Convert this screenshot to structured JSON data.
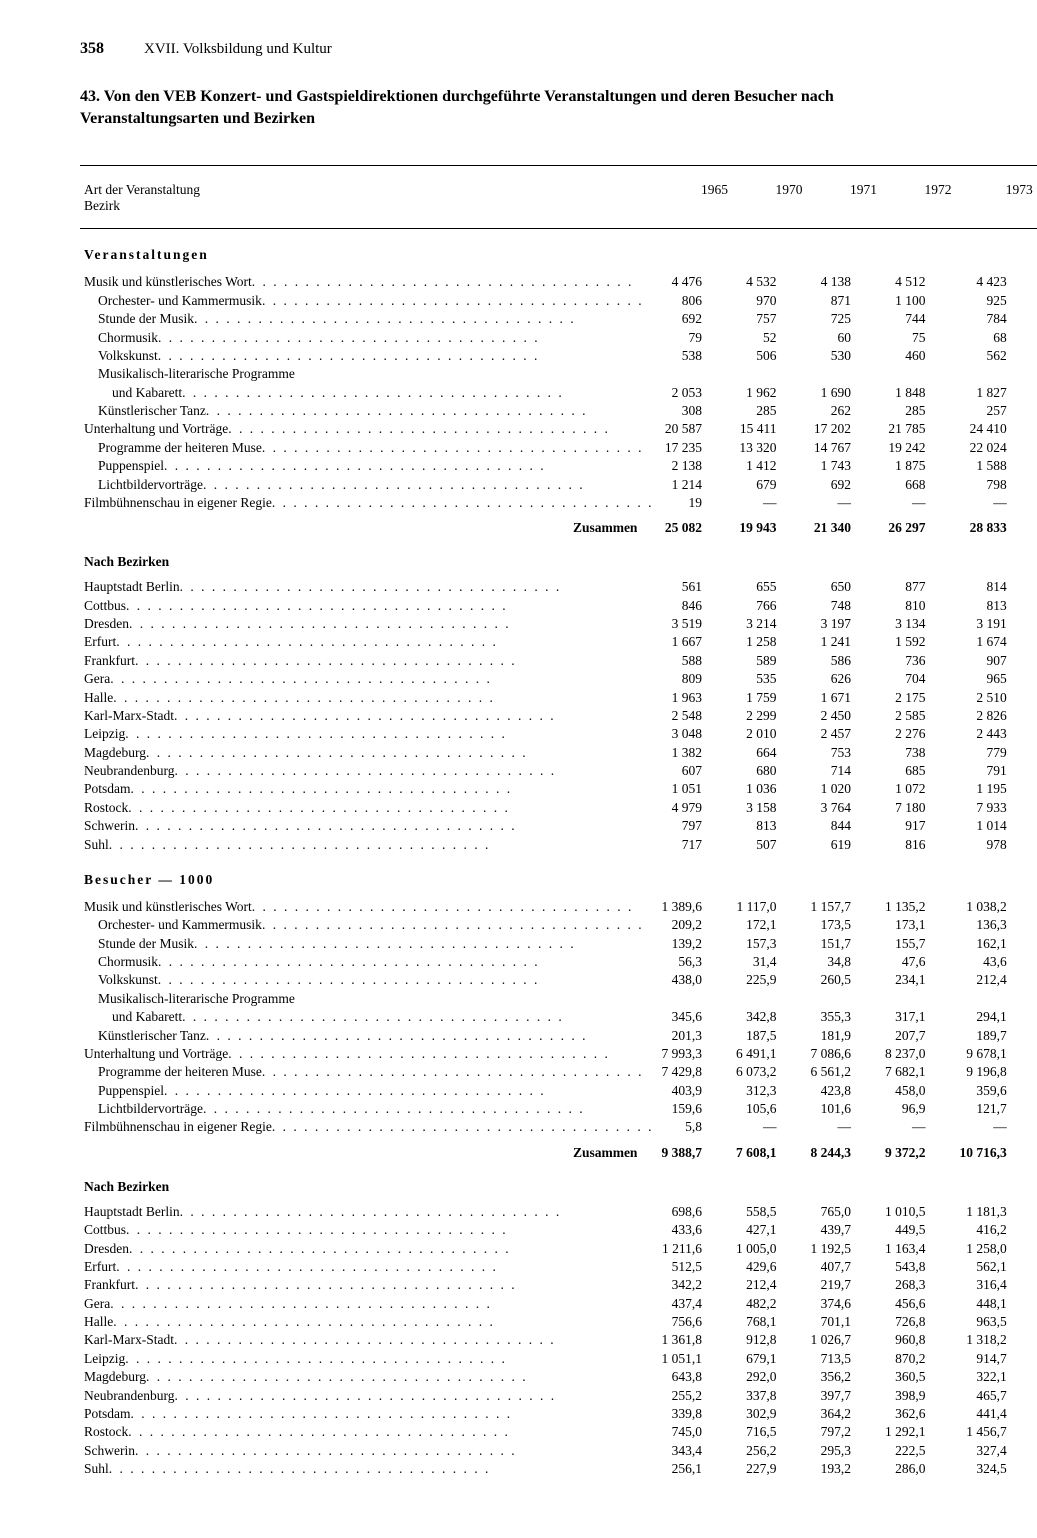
{
  "page_number": "358",
  "chapter": "XVII. Volksbildung und Kultur",
  "title": "43. Von den VEB Konzert- und Gastspieldirektionen durchgeführte Veranstaltungen und deren Besucher nach Veranstaltungsarten und Bezirken",
  "header_label_line1": "Art der Veranstaltung",
  "header_label_line2": "Bezirk",
  "years": [
    "1965",
    "1970",
    "1971",
    "1972",
    "1973"
  ],
  "section_events": "Veranstaltungen",
  "section_visitors": "Besucher — 1000",
  "subhead_bezirke": "Nach Bezirken",
  "total_label": "Zusammen",
  "events_types": [
    {
      "label": "Musik und künstlerisches Wort",
      "indent": 0,
      "v": [
        "4 476",
        "4 532",
        "4 138",
        "4 512",
        "4 423"
      ]
    },
    {
      "label": "Orchester- und Kammermusik",
      "indent": 1,
      "v": [
        "806",
        "970",
        "871",
        "1 100",
        "925"
      ]
    },
    {
      "label": "Stunde der Musik",
      "indent": 1,
      "v": [
        "692",
        "757",
        "725",
        "744",
        "784"
      ]
    },
    {
      "label": "Chormusik",
      "indent": 1,
      "v": [
        "79",
        "52",
        "60",
        "75",
        "68"
      ]
    },
    {
      "label": "Volkskunst",
      "indent": 1,
      "v": [
        "538",
        "506",
        "530",
        "460",
        "562"
      ]
    },
    {
      "label": "Musikalisch-literarische Programme",
      "indent": 1,
      "cont": "und Kabarett",
      "v": [
        "2 053",
        "1 962",
        "1 690",
        "1 848",
        "1 827"
      ]
    },
    {
      "label": "Künstlerischer Tanz",
      "indent": 1,
      "v": [
        "308",
        "285",
        "262",
        "285",
        "257"
      ]
    },
    {
      "label": "Unterhaltung und Vorträge",
      "indent": 0,
      "v": [
        "20 587",
        "15 411",
        "17 202",
        "21 785",
        "24 410"
      ]
    },
    {
      "label": "Programme der heiteren Muse",
      "indent": 1,
      "v": [
        "17 235",
        "13 320",
        "14 767",
        "19 242",
        "22 024"
      ]
    },
    {
      "label": "Puppenspiel",
      "indent": 1,
      "v": [
        "2 138",
        "1 412",
        "1 743",
        "1 875",
        "1 588"
      ]
    },
    {
      "label": "Lichtbildervorträge",
      "indent": 1,
      "v": [
        "1 214",
        "679",
        "692",
        "668",
        "798"
      ]
    },
    {
      "label": "Filmbühnenschau in eigener Regie",
      "indent": 0,
      "v": [
        "19",
        "—",
        "—",
        "—",
        "—"
      ]
    }
  ],
  "events_total": [
    "25 082",
    "19 943",
    "21 340",
    "26 297",
    "28 833"
  ],
  "events_bezirke": [
    {
      "label": "Hauptstadt Berlin",
      "v": [
        "561",
        "655",
        "650",
        "877",
        "814"
      ]
    },
    {
      "label": "Cottbus",
      "v": [
        "846",
        "766",
        "748",
        "810",
        "813"
      ]
    },
    {
      "label": "Dresden",
      "v": [
        "3 519",
        "3 214",
        "3 197",
        "3 134",
        "3 191"
      ]
    },
    {
      "label": "Erfurt",
      "v": [
        "1 667",
        "1 258",
        "1 241",
        "1 592",
        "1 674"
      ]
    },
    {
      "label": "Frankfurt",
      "v": [
        "588",
        "589",
        "586",
        "736",
        "907"
      ]
    },
    {
      "label": "Gera",
      "v": [
        "809",
        "535",
        "626",
        "704",
        "965"
      ]
    },
    {
      "label": "Halle",
      "v": [
        "1 963",
        "1 759",
        "1 671",
        "2 175",
        "2 510"
      ]
    },
    {
      "label": "Karl-Marx-Stadt",
      "v": [
        "2 548",
        "2 299",
        "2 450",
        "2 585",
        "2 826"
      ]
    },
    {
      "label": "Leipzig",
      "v": [
        "3 048",
        "2 010",
        "2 457",
        "2 276",
        "2 443"
      ]
    },
    {
      "label": "Magdeburg",
      "v": [
        "1 382",
        "664",
        "753",
        "738",
        "779"
      ]
    },
    {
      "label": "Neubrandenburg",
      "v": [
        "607",
        "680",
        "714",
        "685",
        "791"
      ]
    },
    {
      "label": "Potsdam",
      "v": [
        "1 051",
        "1 036",
        "1 020",
        "1 072",
        "1 195"
      ]
    },
    {
      "label": "Rostock",
      "v": [
        "4 979",
        "3 158",
        "3 764",
        "7 180",
        "7 933"
      ]
    },
    {
      "label": "Schwerin",
      "v": [
        "797",
        "813",
        "844",
        "917",
        "1 014"
      ]
    },
    {
      "label": "Suhl",
      "v": [
        "717",
        "507",
        "619",
        "816",
        "978"
      ]
    }
  ],
  "visitors_types": [
    {
      "label": "Musik und künstlerisches Wort",
      "indent": 0,
      "v": [
        "1 389,6",
        "1 117,0",
        "1 157,7",
        "1 135,2",
        "1 038,2"
      ]
    },
    {
      "label": "Orchester- und Kammermusik",
      "indent": 1,
      "v": [
        "209,2",
        "172,1",
        "173,5",
        "173,1",
        "136,3"
      ]
    },
    {
      "label": "Stunde der Musik",
      "indent": 1,
      "v": [
        "139,2",
        "157,3",
        "151,7",
        "155,7",
        "162,1"
      ]
    },
    {
      "label": "Chormusik",
      "indent": 1,
      "v": [
        "56,3",
        "31,4",
        "34,8",
        "47,6",
        "43,6"
      ]
    },
    {
      "label": "Volkskunst",
      "indent": 1,
      "v": [
        "438,0",
        "225,9",
        "260,5",
        "234,1",
        "212,4"
      ]
    },
    {
      "label": "Musikalisch-literarische Programme",
      "indent": 1,
      "cont": "und Kabarett",
      "v": [
        "345,6",
        "342,8",
        "355,3",
        "317,1",
        "294,1"
      ]
    },
    {
      "label": "Künstlerischer Tanz",
      "indent": 1,
      "v": [
        "201,3",
        "187,5",
        "181,9",
        "207,7",
        "189,7"
      ]
    },
    {
      "label": "Unterhaltung und Vorträge",
      "indent": 0,
      "v": [
        "7 993,3",
        "6 491,1",
        "7 086,6",
        "8 237,0",
        "9 678,1"
      ]
    },
    {
      "label": "Programme der heiteren Muse",
      "indent": 1,
      "v": [
        "7 429,8",
        "6 073,2",
        "6 561,2",
        "7 682,1",
        "9 196,8"
      ]
    },
    {
      "label": "Puppenspiel",
      "indent": 1,
      "v": [
        "403,9",
        "312,3",
        "423,8",
        "458,0",
        "359,6"
      ]
    },
    {
      "label": "Lichtbildervorträge",
      "indent": 1,
      "v": [
        "159,6",
        "105,6",
        "101,6",
        "96,9",
        "121,7"
      ]
    },
    {
      "label": "Filmbühnenschau in eigener Regie",
      "indent": 0,
      "v": [
        "5,8",
        "—",
        "—",
        "—",
        "—"
      ]
    }
  ],
  "visitors_total": [
    "9 388,7",
    "7 608,1",
    "8 244,3",
    "9 372,2",
    "10 716,3"
  ],
  "visitors_bezirke": [
    {
      "label": "Hauptstadt Berlin",
      "v": [
        "698,6",
        "558,5",
        "765,0",
        "1 010,5",
        "1 181,3"
      ]
    },
    {
      "label": "Cottbus",
      "v": [
        "433,6",
        "427,1",
        "439,7",
        "449,5",
        "416,2"
      ]
    },
    {
      "label": "Dresden",
      "v": [
        "1 211,6",
        "1 005,0",
        "1 192,5",
        "1 163,4",
        "1 258,0"
      ]
    },
    {
      "label": "Erfurt",
      "v": [
        "512,5",
        "429,6",
        "407,7",
        "543,8",
        "562,1"
      ]
    },
    {
      "label": "Frankfurt",
      "v": [
        "342,2",
        "212,4",
        "219,7",
        "268,3",
        "316,4"
      ]
    },
    {
      "label": "Gera",
      "v": [
        "437,4",
        "482,2",
        "374,6",
        "456,6",
        "448,1"
      ]
    },
    {
      "label": "Halle",
      "v": [
        "756,6",
        "768,1",
        "701,1",
        "726,8",
        "963,5"
      ]
    },
    {
      "label": "Karl-Marx-Stadt",
      "v": [
        "1 361,8",
        "912,8",
        "1 026,7",
        "960,8",
        "1 318,2"
      ]
    },
    {
      "label": "Leipzig",
      "v": [
        "1 051,1",
        "679,1",
        "713,5",
        "870,2",
        "914,7"
      ]
    },
    {
      "label": "Magdeburg",
      "v": [
        "643,8",
        "292,0",
        "356,2",
        "360,5",
        "322,1"
      ]
    },
    {
      "label": "Neubrandenburg",
      "v": [
        "255,2",
        "337,8",
        "397,7",
        "398,9",
        "465,7"
      ]
    },
    {
      "label": "Potsdam",
      "v": [
        "339,8",
        "302,9",
        "364,2",
        "362,6",
        "441,4"
      ]
    },
    {
      "label": "Rostock",
      "v": [
        "745,0",
        "716,5",
        "797,2",
        "1 292,1",
        "1 456,7"
      ]
    },
    {
      "label": "Schwerin",
      "v": [
        "343,4",
        "256,2",
        "295,3",
        "222,5",
        "327,4"
      ]
    },
    {
      "label": "Suhl",
      "v": [
        "256,1",
        "227,9",
        "193,2",
        "286,0",
        "324,5"
      ]
    }
  ]
}
